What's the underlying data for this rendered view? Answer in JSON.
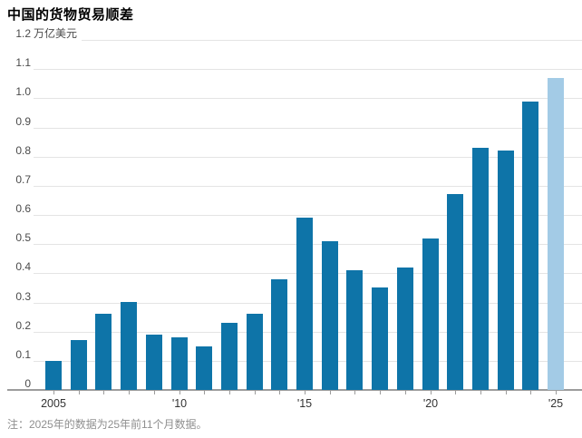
{
  "header": {
    "title": "中国的货物贸易顺差"
  },
  "y_axis": {
    "unit_label": "万亿美元"
  },
  "footnote": {
    "text": "注：2025年的数据为25年前11个月数据。"
  },
  "colors": {
    "bar": "#0e74a8",
    "bar_highlight": "#a3cbe6",
    "gridline": "#e4e4e4",
    "axis_line": "#9c9c9c",
    "tick_mark": "#9c9c9c",
    "y_label_text": "#4a4a4a",
    "x_label_text": "#333333",
    "footnote_text": "#8f8f8f",
    "title_text": "#000000"
  },
  "chart_data": {
    "type": "bar",
    "title": "中国的货物贸易顺差",
    "unit": "万亿美元",
    "categories": [
      2005,
      2006,
      2007,
      2008,
      2009,
      2010,
      2011,
      2012,
      2013,
      2014,
      2015,
      2016,
      2017,
      2018,
      2019,
      2020,
      2021,
      2022,
      2023,
      2024,
      2025
    ],
    "values": [
      0.1,
      0.17,
      0.26,
      0.3,
      0.19,
      0.18,
      0.15,
      0.23,
      0.26,
      0.38,
      0.59,
      0.51,
      0.41,
      0.35,
      0.42,
      0.52,
      0.67,
      0.83,
      0.82,
      0.99,
      1.07
    ],
    "highlight_index": 20,
    "highlight_reason": "2025年的数据为25年前11个月数据",
    "x_tick_labels": [
      {
        "index": 0,
        "label": "2005"
      },
      {
        "index": 5,
        "label": "'10"
      },
      {
        "index": 10,
        "label": "'15"
      },
      {
        "index": 15,
        "label": "'20"
      },
      {
        "index": 20,
        "label": "'25"
      }
    ],
    "y_ticks": [
      0,
      0.1,
      0.2,
      0.3,
      0.4,
      0.5,
      0.6,
      0.7,
      0.8,
      0.9,
      1.0,
      1.1,
      1.2
    ],
    "ylim": [
      0,
      1.2
    ],
    "grid": true,
    "legend": false
  }
}
